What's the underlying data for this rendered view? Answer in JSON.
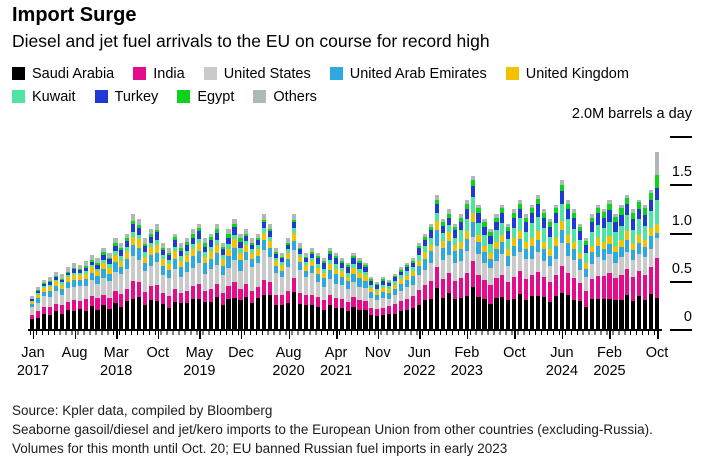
{
  "header": {
    "title": "Import Surge",
    "subtitle": "Diesel and jet fuel arrivals to the EU on course for record high"
  },
  "legend": {
    "rows": [
      [
        {
          "label": "Saudi Arabia",
          "color": "#000000"
        },
        {
          "label": "India",
          "color": "#E50C8B"
        },
        {
          "label": "United States",
          "color": "#CACACA"
        },
        {
          "label": "United Arab Emirates",
          "color": "#2EA9E0"
        },
        {
          "label": "United Kingdom",
          "color": "#F2C200"
        }
      ],
      [
        {
          "label": "Kuwait",
          "color": "#4FE3A4"
        },
        {
          "label": "Turkey",
          "color": "#2038D4"
        },
        {
          "label": "Egypt",
          "color": "#0CD41C"
        },
        {
          "label": "Others",
          "color": "#ACBAB3"
        }
      ]
    ]
  },
  "chart_data": {
    "type": "bar",
    "stacked": true,
    "title": "Import Surge",
    "unit_label": "2.0M barrels a day",
    "ylim": [
      0,
      2.0
    ],
    "y_ticks": [
      {
        "value": 2.0,
        "label": ""
      },
      {
        "value": 1.5,
        "label": "1.5"
      },
      {
        "value": 1.0,
        "label": "1.0"
      },
      {
        "value": 0.5,
        "label": "0.5"
      },
      {
        "value": 0.0,
        "label": "0"
      }
    ],
    "x_range": "Jan 2017 to Oct 2025, monthly",
    "n_months": 106,
    "x_ticks": [
      {
        "index": 0,
        "month": "Jan",
        "year": "2017"
      },
      {
        "index": 7,
        "month": "Aug",
        "year": ""
      },
      {
        "index": 14,
        "month": "Mar",
        "year": "2018"
      },
      {
        "index": 21,
        "month": "Oct",
        "year": ""
      },
      {
        "index": 28,
        "month": "May",
        "year": "2019"
      },
      {
        "index": 35,
        "month": "Dec",
        "year": ""
      },
      {
        "index": 43,
        "month": "Aug",
        "year": "2020"
      },
      {
        "index": 51,
        "month": "Apr",
        "year": "2021"
      },
      {
        "index": 58,
        "month": "Nov",
        "year": ""
      },
      {
        "index": 65,
        "month": "Jun",
        "year": "2022"
      },
      {
        "index": 73,
        "month": "Feb",
        "year": "2023"
      },
      {
        "index": 81,
        "month": "Oct",
        "year": ""
      },
      {
        "index": 89,
        "month": "Jun",
        "year": "2024"
      },
      {
        "index": 97,
        "month": "Feb",
        "year": "2025"
      },
      {
        "index": 105,
        "month": "Oct",
        "year": ""
      }
    ],
    "series_names": [
      "Saudi Arabia",
      "India",
      "United States",
      "United Arab Emirates",
      "United Kingdom",
      "Kuwait",
      "Turkey",
      "Egypt",
      "Others"
    ],
    "series_colors": [
      "#000000",
      "#E50C8B",
      "#CACACA",
      "#2EA9E0",
      "#F2C200",
      "#4FE3A4",
      "#2038D4",
      "#0CD41C",
      "#ACBAB3"
    ],
    "totals_m_bpd": [
      0.35,
      0.45,
      0.52,
      0.55,
      0.6,
      0.58,
      0.65,
      0.7,
      0.68,
      0.72,
      0.78,
      0.75,
      0.85,
      0.8,
      0.95,
      0.9,
      1.0,
      1.2,
      1.15,
      0.95,
      1.05,
      1.1,
      0.9,
      0.85,
      1.0,
      0.9,
      0.95,
      1.05,
      1.1,
      0.95,
      1.0,
      1.1,
      0.9,
      1.05,
      1.15,
      1.0,
      1.05,
      0.95,
      1.0,
      1.2,
      1.1,
      0.85,
      0.8,
      0.95,
      1.2,
      0.9,
      0.8,
      0.85,
      0.8,
      0.75,
      0.85,
      0.8,
      0.75,
      0.7,
      0.8,
      0.75,
      0.7,
      0.55,
      0.5,
      0.55,
      0.52,
      0.58,
      0.65,
      0.7,
      0.75,
      0.9,
      1.0,
      1.1,
      1.4,
      1.15,
      1.25,
      1.1,
      1.2,
      1.35,
      1.6,
      1.3,
      1.15,
      1.05,
      1.2,
      1.3,
      1.1,
      1.25,
      1.35,
      1.2,
      1.3,
      1.4,
      1.25,
      1.15,
      1.3,
      1.55,
      1.35,
      1.25,
      1.1,
      0.95,
      1.2,
      1.3,
      1.25,
      1.35,
      1.2,
      1.3,
      1.4,
      1.25,
      1.35,
      1.3,
      1.45,
      1.85
    ],
    "composition_shares_by_year": {
      "2017": {
        "a": [
          0.32,
          0.13,
          0.22,
          0.09,
          0.08,
          0.03,
          0.04,
          0.02,
          0.07
        ],
        "b": [
          0.28,
          0.16,
          0.19,
          0.11,
          0.07,
          0.04,
          0.05,
          0.02,
          0.08
        ]
      },
      "2018": {
        "a": [
          0.3,
          0.13,
          0.2,
          0.11,
          0.08,
          0.04,
          0.06,
          0.03,
          0.05
        ],
        "b": [
          0.27,
          0.15,
          0.22,
          0.09,
          0.07,
          0.05,
          0.07,
          0.02,
          0.06
        ]
      },
      "2019": {
        "a": [
          0.29,
          0.14,
          0.2,
          0.11,
          0.08,
          0.04,
          0.07,
          0.03,
          0.04
        ],
        "b": [
          0.31,
          0.12,
          0.18,
          0.12,
          0.07,
          0.05,
          0.06,
          0.04,
          0.05
        ]
      },
      "2020": {
        "a": [
          0.33,
          0.12,
          0.24,
          0.08,
          0.07,
          0.04,
          0.05,
          0.02,
          0.05
        ],
        "b": [
          0.3,
          0.13,
          0.26,
          0.09,
          0.06,
          0.04,
          0.05,
          0.02,
          0.05
        ]
      },
      "2021": {
        "a": [
          0.3,
          0.13,
          0.19,
          0.11,
          0.08,
          0.05,
          0.07,
          0.03,
          0.04
        ],
        "b": [
          0.28,
          0.14,
          0.18,
          0.12,
          0.07,
          0.06,
          0.08,
          0.03,
          0.04
        ]
      },
      "2022": {
        "a": [
          0.31,
          0.16,
          0.15,
          0.12,
          0.07,
          0.06,
          0.06,
          0.03,
          0.04
        ],
        "b": [
          0.29,
          0.17,
          0.17,
          0.11,
          0.06,
          0.07,
          0.07,
          0.03,
          0.03
        ]
      },
      "2023": {
        "a": [
          0.28,
          0.17,
          0.15,
          0.1,
          0.06,
          0.1,
          0.07,
          0.04,
          0.03
        ],
        "b": [
          0.26,
          0.18,
          0.17,
          0.09,
          0.06,
          0.09,
          0.08,
          0.04,
          0.03
        ]
      },
      "2024": {
        "a": [
          0.27,
          0.17,
          0.13,
          0.1,
          0.06,
          0.12,
          0.08,
          0.04,
          0.03
        ],
        "b": [
          0.25,
          0.18,
          0.15,
          0.09,
          0.06,
          0.11,
          0.09,
          0.04,
          0.03
        ]
      },
      "2025": {
        "a": [
          0.26,
          0.19,
          0.13,
          0.09,
          0.06,
          0.12,
          0.08,
          0.05,
          0.02
        ],
        "b": [
          0.24,
          0.2,
          0.14,
          0.08,
          0.06,
          0.11,
          0.09,
          0.05,
          0.03
        ]
      }
    },
    "last_bar_values_oct_2025": [
      0.33,
      0.42,
      0.2,
      0.06,
      0.09,
      0.25,
      0.12,
      0.14,
      0.24
    ],
    "notes": "Record high final bar ~1.85M b/d in Oct 2025"
  },
  "footer": {
    "lines": [
      "Source: Kpler data, compiled by Bloomberg",
      "Seaborne gasoil/diesel and jet/kero imports to the European Union from other countries (excluding-Russia).",
      "Volumes for this month until Oct. 20; EU banned Russian fuel imports in early 2023"
    ]
  }
}
